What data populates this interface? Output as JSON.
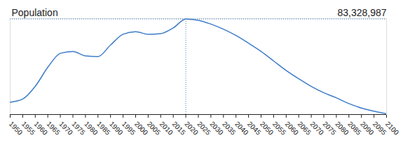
{
  "chart_data": {
    "type": "line",
    "title": "Population",
    "x": [
      1950,
      1955,
      1960,
      1965,
      1970,
      1975,
      1980,
      1985,
      1990,
      1995,
      2000,
      2005,
      2010,
      2015,
      2020,
      2025,
      2030,
      2035,
      2040,
      2045,
      2050,
      2055,
      2060,
      2065,
      2070,
      2075,
      2080,
      2085,
      2090,
      2095,
      2100
    ],
    "values": [
      69970000,
      70480000,
      72520000,
      75580000,
      77820000,
      78130000,
      77410000,
      77310000,
      79150000,
      80880000,
      81290000,
      80880000,
      80980000,
      81900000,
      83328987,
      83130000,
      82510000,
      81700000,
      80680000,
      79450000,
      78130000,
      76600000,
      75070000,
      73740000,
      72520000,
      71500000,
      70680000,
      69760000,
      69050000,
      68540000,
      68130000
    ],
    "color": "#3d7cc9",
    "line_style": "solid",
    "xlim": [
      1950,
      2100
    ],
    "xticks": [
      1950,
      1955,
      1960,
      1965,
      1970,
      1975,
      1980,
      1985,
      1990,
      1995,
      2000,
      2005,
      2010,
      2015,
      2020,
      2025,
      2030,
      2035,
      2040,
      2045,
      2050,
      2055,
      2060,
      2065,
      2070,
      2075,
      2080,
      2085,
      2090,
      2095,
      2100
    ],
    "ylim": [
      68000000,
      83400000
    ],
    "yticks": [],
    "tick_labels": "x",
    "grid": false,
    "annotations": [
      {
        "x": 2020,
        "y": 83328987,
        "label": "83,328,987"
      }
    ]
  }
}
